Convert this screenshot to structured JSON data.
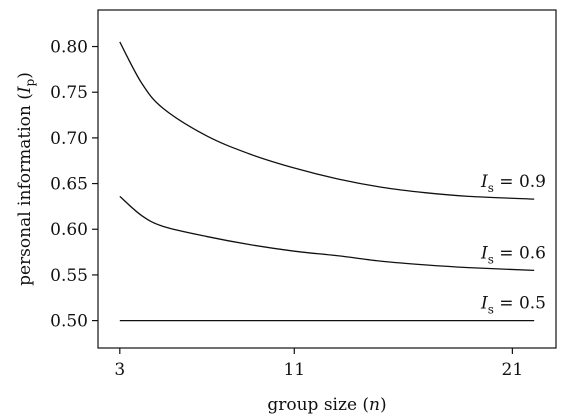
{
  "chart_data": {
    "type": "line",
    "xlabel": {
      "main": "group size (",
      "var": "n",
      "close": ")"
    },
    "ylabel": {
      "main": "personal information (",
      "var": "I",
      "sub": "p",
      "close": ")"
    },
    "xlim": [
      2,
      23
    ],
    "ylim": [
      0.47,
      0.84
    ],
    "xticks": [
      3,
      11,
      21
    ],
    "yticks": [
      0.5,
      0.55,
      0.6,
      0.65,
      0.7,
      0.75,
      0.8
    ],
    "grid": false,
    "series": [
      {
        "name": "I_s = 0.9",
        "label": {
          "var": "I",
          "sub": "s",
          "eq": " = 0.9"
        },
        "points": [
          [
            3,
            0.805
          ],
          [
            4,
            0.76
          ],
          [
            5,
            0.732
          ],
          [
            7,
            0.702
          ],
          [
            9,
            0.682
          ],
          [
            11,
            0.667
          ],
          [
            13,
            0.655
          ],
          [
            15,
            0.646
          ],
          [
            17,
            0.64
          ],
          [
            19,
            0.636
          ],
          [
            22,
            0.633
          ]
        ]
      },
      {
        "name": "I_s = 0.6",
        "label": {
          "var": "I",
          "sub": "s",
          "eq": " = 0.6"
        },
        "points": [
          [
            3,
            0.636
          ],
          [
            4,
            0.615
          ],
          [
            5,
            0.603
          ],
          [
            7,
            0.592
          ],
          [
            9,
            0.583
          ],
          [
            11,
            0.576
          ],
          [
            13,
            0.571
          ],
          [
            15,
            0.565
          ],
          [
            17,
            0.561
          ],
          [
            19,
            0.558
          ],
          [
            22,
            0.555
          ]
        ]
      },
      {
        "name": "I_s = 0.5",
        "label": {
          "var": "I",
          "sub": "s",
          "eq": " = 0.5"
        },
        "points": [
          [
            3,
            0.5
          ],
          [
            22,
            0.5
          ]
        ]
      }
    ]
  }
}
